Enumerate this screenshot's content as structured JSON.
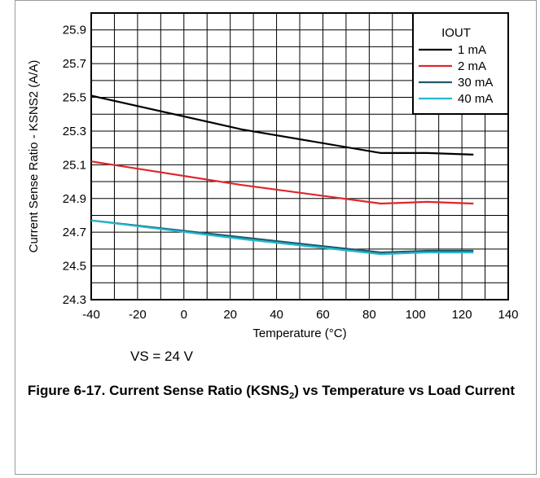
{
  "chart_data": {
    "type": "line",
    "xlabel": "Temperature (°C)",
    "ylabel": "Current Sense Ratio - KSNS2 (A/A)",
    "xlim": [
      -40,
      140
    ],
    "ylim": [
      24.3,
      26.0
    ],
    "xticks": [
      -40,
      -20,
      0,
      20,
      40,
      60,
      80,
      100,
      120,
      140
    ],
    "xtick_labels": [
      "-40",
      "-20",
      "0",
      "20",
      "40",
      "60",
      "80",
      "100",
      "120",
      "140"
    ],
    "yticks": [
      24.3,
      24.5,
      24.7,
      24.9,
      25.1,
      25.3,
      25.5,
      25.7,
      25.9
    ],
    "ytick_labels": [
      "24.3",
      "24.5",
      "24.7",
      "24.9",
      "25.1",
      "25.3",
      "25.5",
      "25.7",
      "25.9"
    ],
    "grid": true,
    "legend_title": "IOUT",
    "legend_position": "top-right",
    "series": [
      {
        "name": "1 mA",
        "color": "#000000",
        "x": [
          -40,
          25,
          85,
          105,
          125
        ],
        "y": [
          25.51,
          25.31,
          25.17,
          25.17,
          25.16
        ]
      },
      {
        "name": "2 mA",
        "color": "#e0262b",
        "x": [
          -40,
          25,
          85,
          105,
          125
        ],
        "y": [
          25.12,
          24.98,
          24.87,
          24.88,
          24.87
        ]
      },
      {
        "name": "30 mA",
        "color": "#1f5a6b",
        "x": [
          -40,
          25,
          85,
          105,
          125
        ],
        "y": [
          24.77,
          24.67,
          24.58,
          24.59,
          24.59
        ]
      },
      {
        "name": "40 mA",
        "color": "#22b8cf",
        "x": [
          -40,
          25,
          85,
          105,
          125
        ],
        "y": [
          24.77,
          24.66,
          24.57,
          24.58,
          24.58
        ]
      }
    ]
  },
  "note": "VS = 24 V",
  "caption": {
    "prefix": "Figure 6-17. Current Sense Ratio (KSNS",
    "subscript": "2",
    "suffix": ") vs Temperature vs Load Current"
  }
}
